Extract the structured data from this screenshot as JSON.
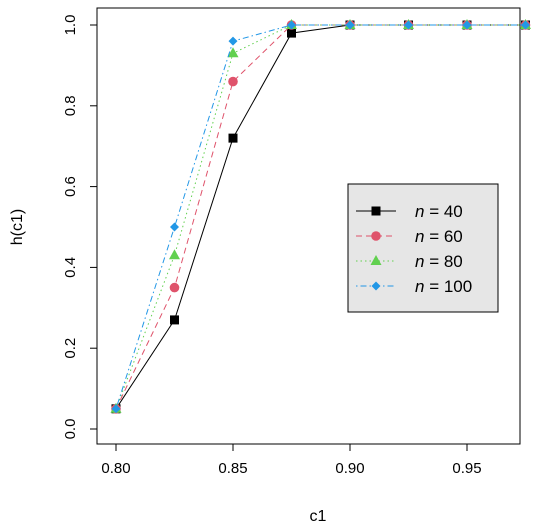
{
  "chart_data": {
    "type": "line",
    "title": "",
    "xlabel": "c1",
    "ylabel": "h(c1)",
    "xlim": [
      0.8,
      0.975
    ],
    "ylim": [
      0.0,
      1.0
    ],
    "x_ticks": [
      0.8,
      0.85,
      0.9,
      0.95
    ],
    "x_tick_labels": [
      "0.80",
      "0.85",
      "0.90",
      "0.95"
    ],
    "y_ticks": [
      0.0,
      0.2,
      0.4,
      0.6,
      0.8,
      1.0
    ],
    "y_tick_labels": [
      "0.0",
      "0.2",
      "0.4",
      "0.6",
      "0.8",
      "1.0"
    ],
    "grid": false,
    "legend_position": "right",
    "x": [
      0.8,
      0.825,
      0.85,
      0.875,
      0.9,
      0.925,
      0.95,
      0.975
    ],
    "series": [
      {
        "name": "n = 40",
        "n_value": "40",
        "color": "#000000",
        "marker": "square",
        "line_style": "solid",
        "values": [
          0.05,
          0.27,
          0.72,
          0.98,
          1.0,
          1.0,
          1.0,
          1.0
        ]
      },
      {
        "name": "n = 60",
        "n_value": "60",
        "color": "#DF536B",
        "marker": "circle",
        "line_style": "dashed",
        "values": [
          0.05,
          0.35,
          0.86,
          1.0,
          1.0,
          1.0,
          1.0,
          1.0
        ]
      },
      {
        "name": "n = 80",
        "n_value": "80",
        "color": "#61D04F",
        "marker": "triangle",
        "line_style": "dotted",
        "values": [
          0.05,
          0.43,
          0.93,
          1.0,
          1.0,
          1.0,
          1.0,
          1.0
        ]
      },
      {
        "name": "n = 100",
        "n_value": "100",
        "color": "#2297E6",
        "marker": "diamond",
        "line_style": "dotdash",
        "values": [
          0.05,
          0.5,
          0.96,
          1.0,
          1.0,
          1.0,
          1.0,
          1.0
        ]
      }
    ]
  }
}
